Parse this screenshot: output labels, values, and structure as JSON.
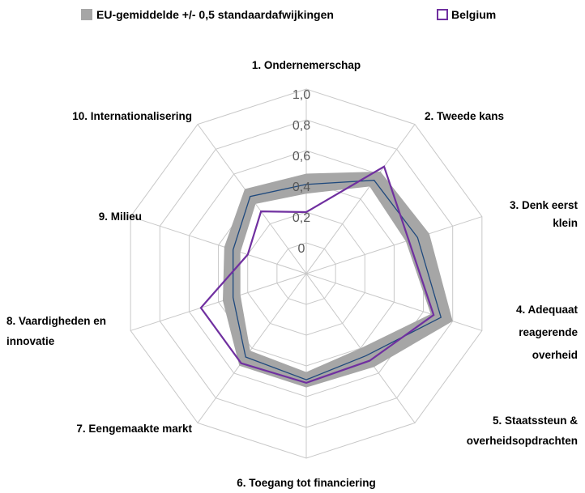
{
  "chart_data": {
    "type": "radar",
    "categories": [
      "1. Ondernemerschap",
      "2. Tweede kans",
      "3. Denk eerst klein",
      "4. Adequaat reagerende overheid",
      "5. Staatssteun & overheidsopdrachten",
      "6. Toegang tot financiering",
      "7. Eengemaakte markt",
      "8. Vaardigheden en innovatie",
      "9. Milieu",
      "10. Internationalisering"
    ],
    "series": [
      {
        "name": "EU-gemiddelde +/- 0,5 standaardafwijkingen",
        "color": "#a6a6a6",
        "line_color": "#1f497d",
        "values": [
          0.38,
          0.55,
          0.56,
          0.72,
          0.46,
          0.49,
          0.47,
          0.3,
          0.3,
          0.42
        ],
        "low": [
          0.32,
          0.5,
          0.48,
          0.65,
          0.4,
          0.44,
          0.42,
          0.25,
          0.25,
          0.36
        ],
        "high": [
          0.45,
          0.62,
          0.64,
          0.8,
          0.55,
          0.54,
          0.54,
          0.37,
          0.36,
          0.48
        ]
      },
      {
        "name": "Belgium",
        "color": "#7030a0",
        "values": [
          0.2,
          0.66,
          0.5,
          0.67,
          0.5,
          0.51,
          0.52,
          0.52,
          0.2,
          0.3
        ]
      }
    ],
    "ylim": [
      -0.2,
      1.0
    ],
    "yticks": [
      0,
      {
        "value": 0.2,
        "label": "0,2"
      },
      {
        "value": 0.4,
        "label": "0,4"
      },
      {
        "value": 0.6,
        "label": "0,6"
      },
      {
        "value": 0.8,
        "label": "0,8"
      },
      {
        "value": 1.0,
        "label": "1,0"
      }
    ],
    "grid": true
  }
}
